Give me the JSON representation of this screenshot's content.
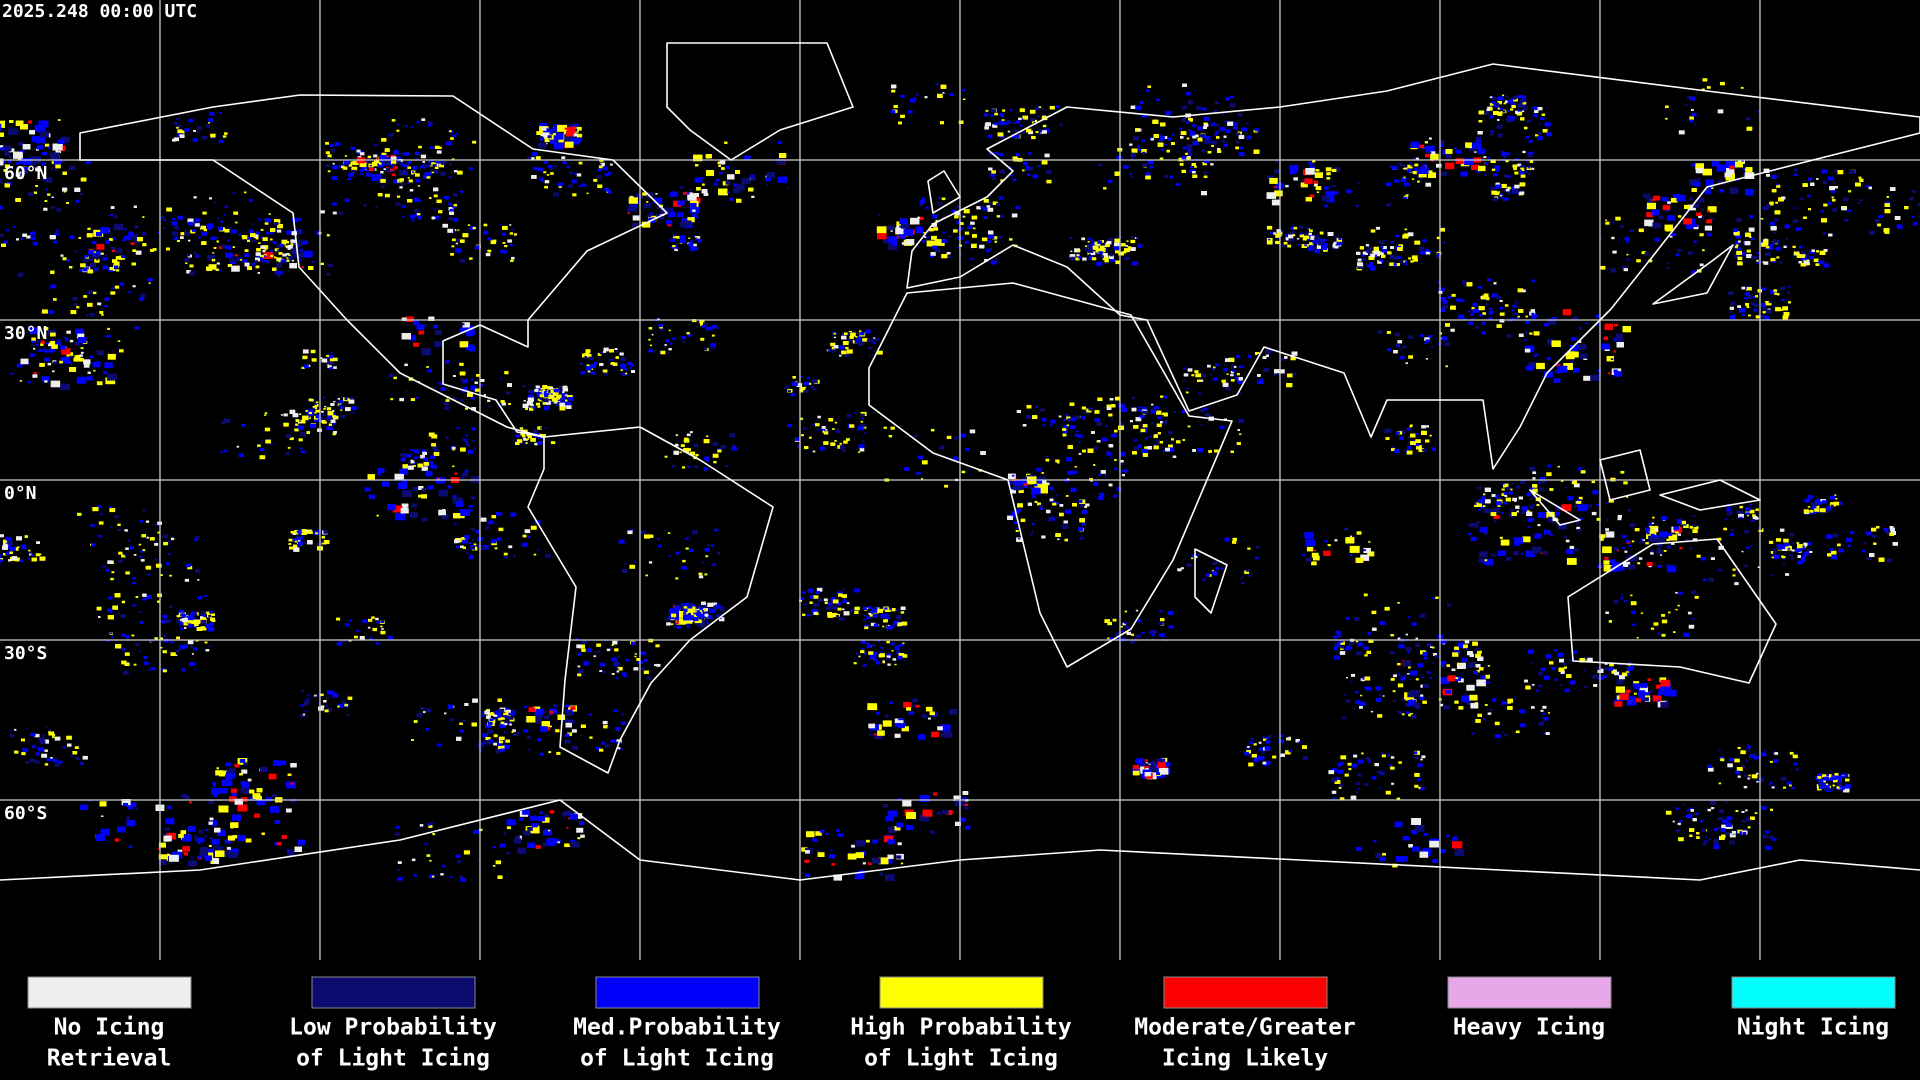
{
  "header": {
    "timestamp": "2025.248 00:00 UTC"
  },
  "map": {
    "latitude_labels": [
      "60°N",
      "30°N",
      "0°N",
      "30°S",
      "60°S"
    ]
  },
  "legend": {
    "items": [
      {
        "label_lines": [
          "No Icing",
          "Retrieval"
        ],
        "color": "#eeeeee"
      },
      {
        "label_lines": [
          "Low Probability",
          "of Light Icing"
        ],
        "color": "#0b0b70"
      },
      {
        "label_lines": [
          "Med.Probability",
          "of Light Icing"
        ],
        "color": "#0000ff"
      },
      {
        "label_lines": [
          "High Probability",
          "of Light Icing"
        ],
        "color": "#ffff00"
      },
      {
        "label_lines": [
          "Moderate/Greater",
          "Icing Likely"
        ],
        "color": "#ff0000"
      },
      {
        "label_lines": [
          "Heavy Icing"
        ],
        "color": "#e8a8e8"
      },
      {
        "label_lines": [
          "Night Icing"
        ],
        "color": "#00ffff"
      }
    ]
  }
}
